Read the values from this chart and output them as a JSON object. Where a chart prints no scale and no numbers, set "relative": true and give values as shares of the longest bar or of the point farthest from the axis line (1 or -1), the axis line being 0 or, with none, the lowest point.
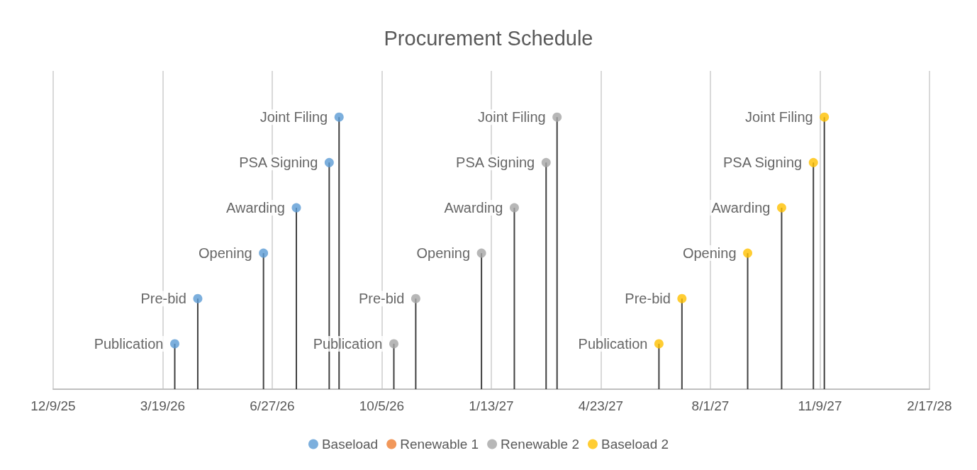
{
  "chart_data": {
    "type": "lollipop",
    "title": "Procurement Schedule",
    "relative": true,
    "xlim": [
      "2025-12-09",
      "2028-02-17"
    ],
    "xticks": [
      {
        "value": "2025-12-09",
        "label": "12/9/25"
      },
      {
        "value": "2026-03-19",
        "label": "3/19/26"
      },
      {
        "value": "2026-06-27",
        "label": "6/27/26"
      },
      {
        "value": "2026-10-05",
        "label": "10/5/26"
      },
      {
        "value": "2027-01-13",
        "label": "1/13/27"
      },
      {
        "value": "2027-04-23",
        "label": "4/23/27"
      },
      {
        "value": "2027-08-01",
        "label": "8/1/27"
      },
      {
        "value": "2027-11-09",
        "label": "11/9/27"
      },
      {
        "value": "2028-02-17",
        "label": "2/17/28"
      }
    ],
    "series": [
      {
        "name": "Baseload",
        "color": "#5b9bd5",
        "x": [
          "2026-03-30",
          "2026-04-20",
          "2026-06-19",
          "2026-07-19",
          "2026-08-18",
          "2026-08-27"
        ],
        "values": [
          0.167,
          0.333,
          0.5,
          0.667,
          0.833,
          1
        ]
      },
      {
        "name": "Renewable 1",
        "color": "#ed7d31"
      },
      {
        "name": "Renewable 2",
        "color": "#a5a5a5",
        "x": [
          "2026-10-16",
          "2026-11-05",
          "2027-01-04",
          "2027-02-03",
          "2027-03-04",
          "2027-03-14"
        ],
        "values": [
          0.167,
          0.333,
          0.5,
          0.667,
          0.833,
          1
        ]
      },
      {
        "name": "Baseload 2",
        "color": "#ffc000",
        "x": [
          "2027-06-15",
          "2027-07-06",
          "2027-09-04",
          "2027-10-05",
          "2027-11-03",
          "2027-11-13"
        ],
        "values": [
          0.167,
          0.333,
          0.5,
          0.667,
          0.833,
          1
        ]
      }
    ],
    "annotations": [
      {
        "text": "Publication",
        "x": "2026-03-30",
        "y": 0.167
      },
      {
        "text": "Pre-bid",
        "x": "2026-04-20",
        "y": 0.333
      },
      {
        "text": "Opening",
        "x": "2026-06-19",
        "y": 0.5
      },
      {
        "text": "Awarding",
        "x": "2026-07-19",
        "y": 0.667
      },
      {
        "text": "PSA Signing",
        "x": "2026-08-18",
        "y": 0.833
      },
      {
        "text": "Joint Filing",
        "x": "2026-08-27",
        "y": 1
      },
      {
        "text": "Publication",
        "x": "2026-10-16",
        "y": 0.167
      },
      {
        "text": "Pre-bid",
        "x": "2026-11-05",
        "y": 0.333
      },
      {
        "text": "Opening",
        "x": "2027-01-04",
        "y": 0.5
      },
      {
        "text": "Awarding",
        "x": "2027-02-03",
        "y": 0.667
      },
      {
        "text": "PSA Signing",
        "x": "2027-03-04",
        "y": 0.833
      },
      {
        "text": "Joint Filing",
        "x": "2027-03-14",
        "y": 1
      },
      {
        "text": "Publication",
        "x": "2027-06-15",
        "y": 0.167
      },
      {
        "text": "Pre-bid",
        "x": "2027-07-06",
        "y": 0.333
      },
      {
        "text": "Opening",
        "x": "2027-09-04",
        "y": 0.5
      },
      {
        "text": "Awarding",
        "x": "2027-10-05",
        "y": 0.667
      },
      {
        "text": "PSA Signing",
        "x": "2027-11-03",
        "y": 0.833
      },
      {
        "text": "Joint Filing",
        "x": "2027-11-13",
        "y": 1
      }
    ],
    "grid": "x",
    "legend": "bottom",
    "marker": "circle"
  }
}
